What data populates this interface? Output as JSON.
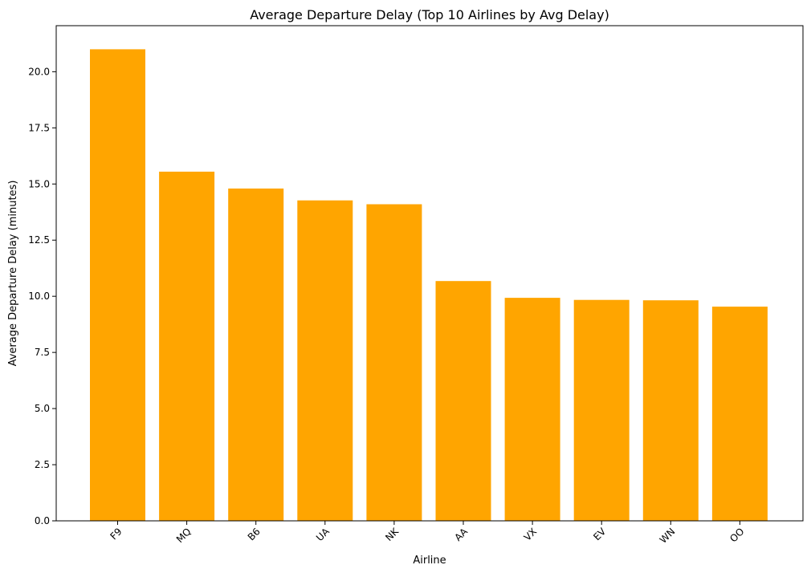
{
  "chart_data": {
    "type": "bar",
    "title": "Average Departure Delay (Top 10 Airlines by Avg Delay)",
    "xlabel": "Airline",
    "ylabel": "Average Departure Delay (minutes)",
    "categories": [
      "F9",
      "MQ",
      "B6",
      "UA",
      "NK",
      "AA",
      "VX",
      "EV",
      "WN",
      "OO"
    ],
    "values": [
      21.0,
      15.55,
      14.8,
      14.27,
      14.1,
      10.68,
      9.93,
      9.84,
      9.82,
      9.54
    ],
    "ylim": [
      0,
      22.05
    ],
    "yticks": [
      "0.0",
      "2.5",
      "5.0",
      "7.5",
      "10.0",
      "12.5",
      "15.0",
      "17.5",
      "20.0"
    ],
    "ytick_values": [
      0,
      2.5,
      5,
      7.5,
      10,
      12.5,
      15,
      17.5,
      20
    ],
    "bar_color": "#ffa500",
    "grid": false,
    "xtick_rotation_deg": 45
  }
}
